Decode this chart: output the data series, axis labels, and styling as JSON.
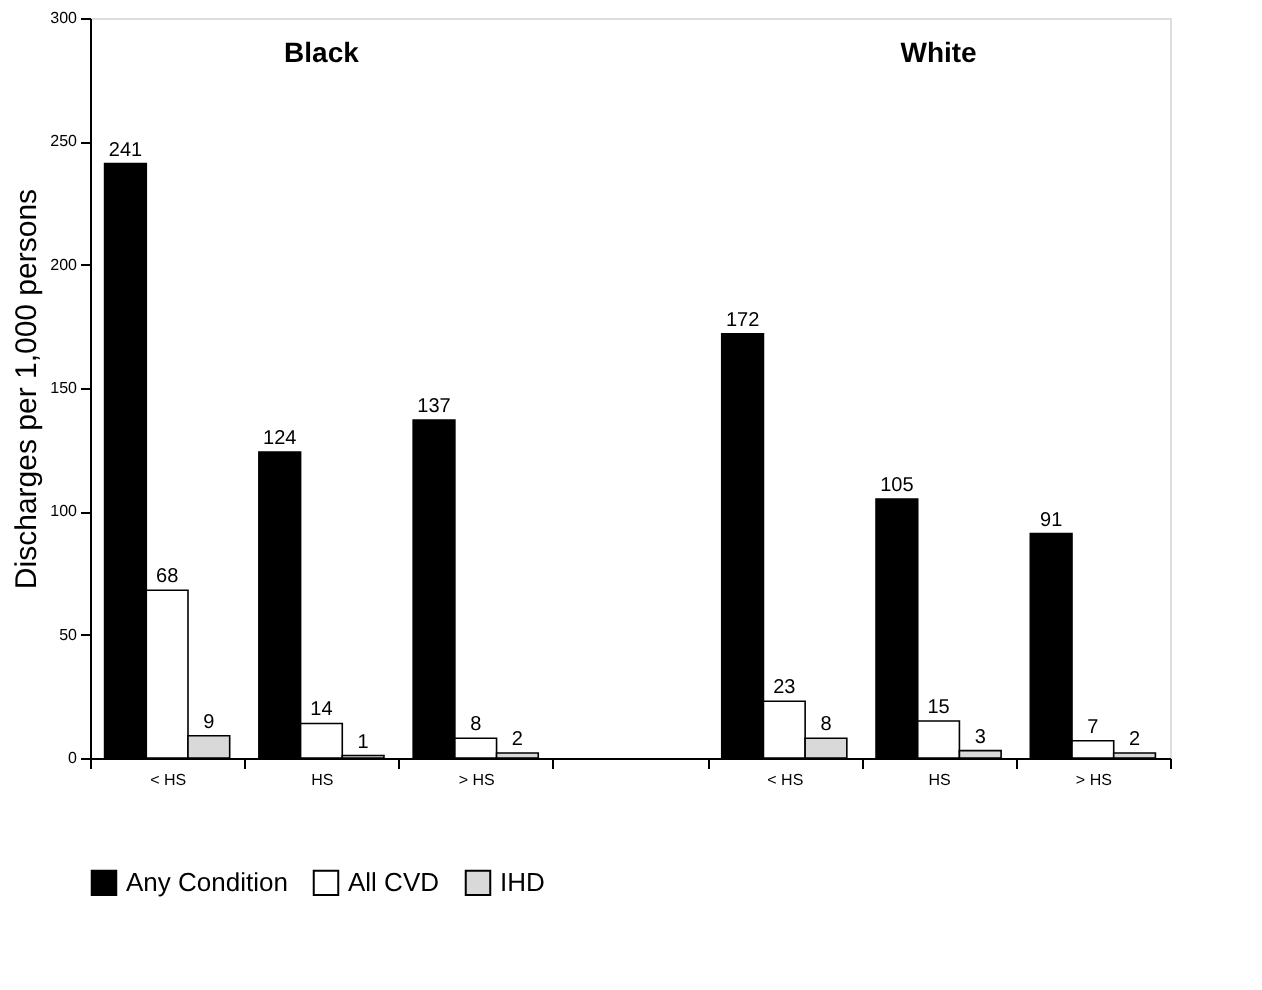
{
  "chart_data": {
    "type": "bar",
    "ylabel": "Discharges per 1,000 persons",
    "categories": [
      "< HS",
      "HS",
      "> HS",
      null,
      "< HS",
      "HS",
      "> HS"
    ],
    "series": [
      {
        "name": "Any Condition",
        "color": "#000000",
        "values": [
          241,
          124,
          137,
          null,
          172,
          105,
          91
        ]
      },
      {
        "name": "All CVD",
        "color": "#ffffff",
        "values": [
          68,
          14,
          8,
          null,
          23,
          15,
          7
        ]
      },
      {
        "name": "IHD",
        "color": "#d9d9d9",
        "values": [
          9,
          1,
          2,
          null,
          8,
          3,
          2
        ]
      }
    ],
    "annotations": [
      "Black",
      "White"
    ],
    "ylim": [
      0,
      300
    ],
    "yticks": [
      0,
      50,
      100,
      150,
      200,
      250,
      300
    ],
    "data_labels": true,
    "legend": "bottom",
    "grid": false
  }
}
